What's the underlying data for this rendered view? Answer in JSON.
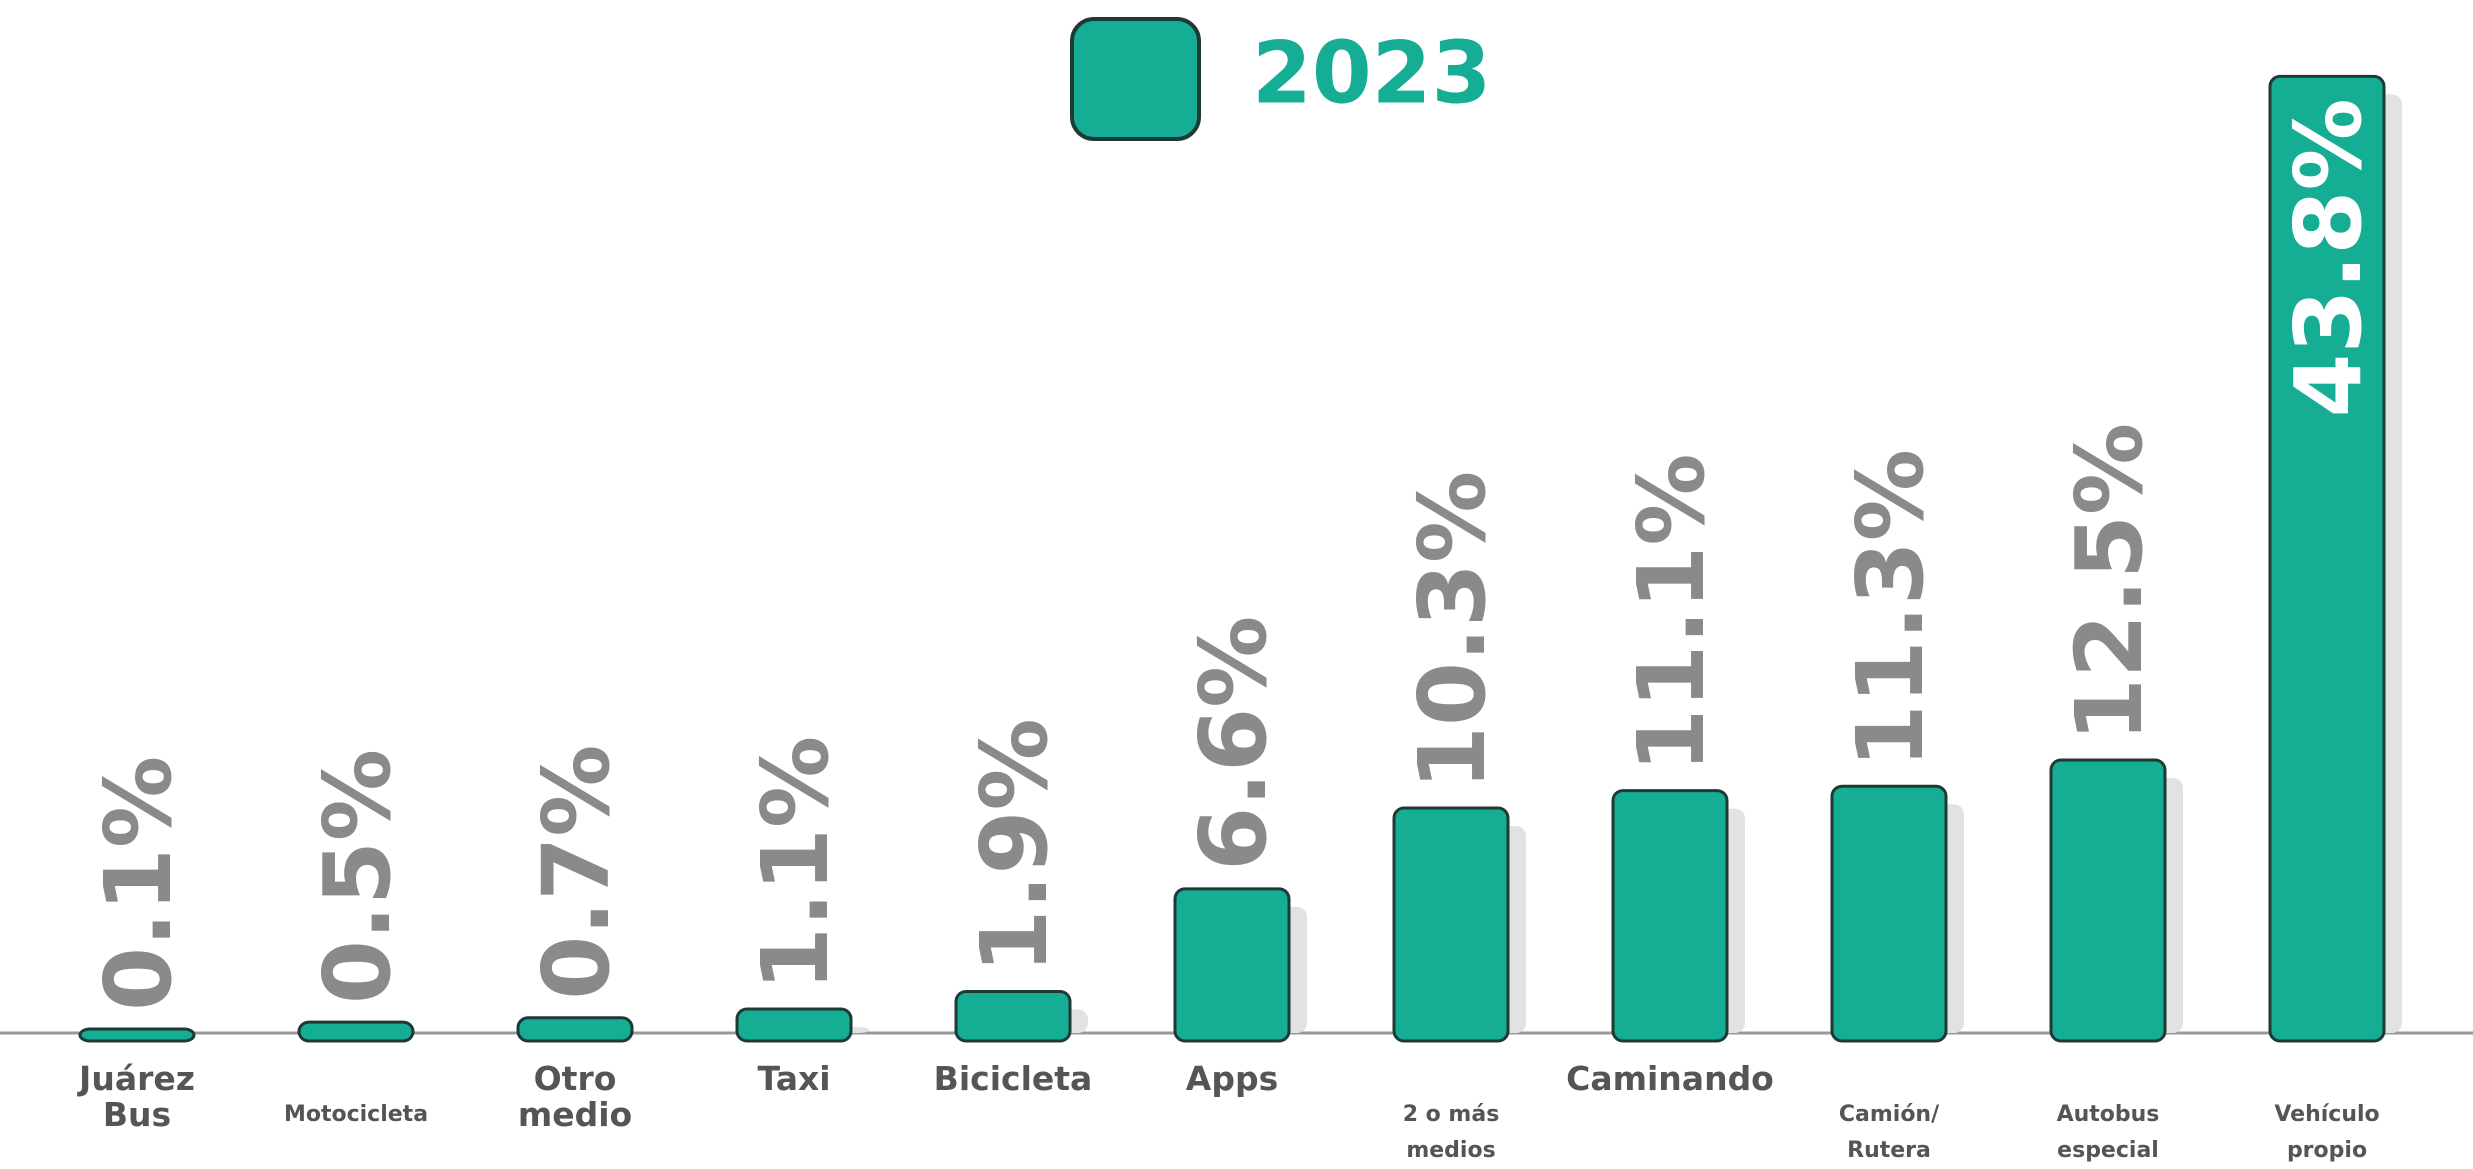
{
  "chart_data": {
    "type": "bar",
    "legend": "2023",
    "color": "#15ad93",
    "categories": [
      "Juárez\nBus",
      "Motocicleta",
      "Otro\nmedio",
      "Taxi",
      "Bicicleta",
      "Apps",
      "2 o más\nmedios",
      "Caminando",
      "Camión/\nRutera",
      "Autobus\nespecial",
      "Vehículo\npropio"
    ],
    "values": [
      0.1,
      0.5,
      0.7,
      1.1,
      1.9,
      6.6,
      10.3,
      11.1,
      11.3,
      12.5,
      43.8
    ],
    "value_labels": [
      "0.1%",
      "0.5%",
      "0.7%",
      "1.1%",
      "1.9%",
      "6.6%",
      "10.3%",
      "11.1%",
      "11.3%",
      "12.5%",
      "43.8%"
    ],
    "ylim": [
      0,
      44
    ]
  }
}
